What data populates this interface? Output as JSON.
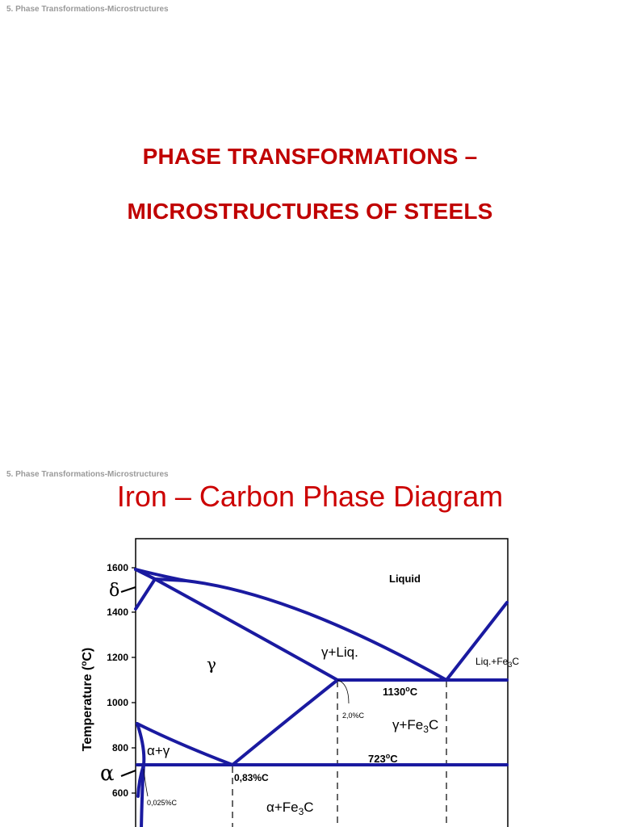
{
  "slide1": {
    "header": "5. Phase Transformations-Microstructures",
    "title_line1": "PHASE TRANSFORMATIONS –",
    "title_line2": "MICROSTRUCTURES OF STEELS"
  },
  "slide2": {
    "header": "5. Phase Transformations-Microstructures",
    "title": "Iron – Carbon Phase Diagram"
  },
  "diagram": {
    "y_axis_label": "Temperature (",
    "y_axis_label_sup": "o",
    "y_axis_label_end": "C)",
    "y_ticks": [
      "1600",
      "1400",
      "1200",
      "1000",
      "800",
      "600"
    ],
    "labels": {
      "liquid": "Liquid",
      "delta": "δ",
      "gamma": "γ",
      "gamma_liq": "γ+Liq.",
      "liq_fe3c_pre": "Liq.+Fe",
      "liq_fe3c_sub": "3",
      "liq_fe3c_post": "C",
      "t1130": "1130",
      "t1130_sup": "o",
      "t1130_end": "C",
      "c20": "2,0%C",
      "gamma_fe3c_pre": "γ+Fe",
      "gamma_fe3c_sub": "3",
      "gamma_fe3c_post": "C",
      "alpha_gamma": "α+γ",
      "t723": "723",
      "t723_sup": "o",
      "t723_end": "C",
      "alpha": "α",
      "c083": "0,83%C",
      "c0025": "0,025%C",
      "alpha_fe3c_pre": "α+Fe",
      "alpha_fe3c_sub": "3",
      "alpha_fe3c_post": "C"
    },
    "colors": {
      "phase_lines": "#1a1aa0",
      "frame": "#000000"
    }
  }
}
